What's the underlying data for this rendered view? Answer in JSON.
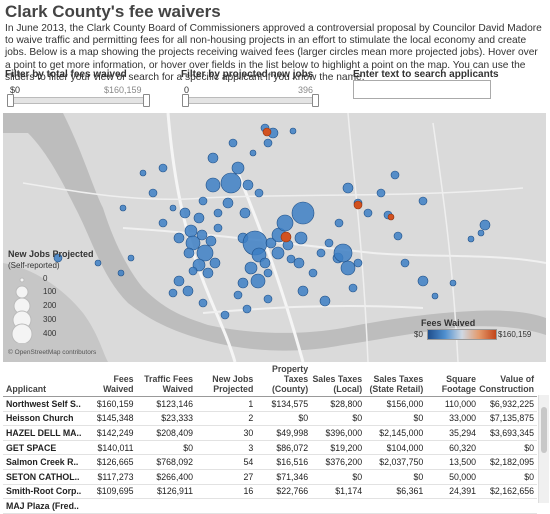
{
  "page": {
    "title": "Clark County's fee waivers",
    "description": "In June 2013, the Clark County Board of Commissioners approved a controversial proposal by Councilor David Madore to waive traffic and permitting fees for all non-housing projects in an effort to stimulate the local economy and create jobs. Below is a map showing the projects receiving waived fees (larger circles mean more projected jobs). Hover over a point to get more information, or hover over fields in the list below to highlight a point on the map. You can use the sliders to filter your view or search for a specific applicant if you know the name."
  },
  "filters": {
    "fees": {
      "label": "Filter by total fees waived",
      "min": "$0",
      "max": "$160,159"
    },
    "jobs": {
      "label": "Filter by projected new jobs",
      "min": "0",
      "max": "396"
    },
    "search": {
      "label": "Enter text to search applicants",
      "value": ""
    }
  },
  "map": {
    "attribution": "© OpenStreetMap contributors",
    "size_legend": {
      "title": "New Jobs Projected",
      "subtitle": "(Self-reported)",
      "values": [
        "0",
        "100",
        "200",
        "300",
        "400"
      ]
    },
    "color_legend": {
      "title": "Fees Waived",
      "min": "$0",
      "max": "$160,159",
      "low_color": "#2b6cb0",
      "high_color": "#d2511f"
    },
    "colors": {
      "water": "#bfbfbf",
      "land": "#dadada",
      "road": "#f4f4f4",
      "point": "#3d7fc4"
    }
  },
  "table": {
    "headers": [
      "Applicant",
      "Fees Waived",
      "Traffic Fees Waived",
      "New Jobs Projected",
      "Property Taxes (County)",
      "Sales Taxes (Local)",
      "Sales Taxes (State Retail)",
      "Square Footage",
      "Value of Construction"
    ],
    "rows": [
      [
        "Northwest Self S..",
        "$160,159",
        "$123,146",
        "1",
        "$134,575",
        "$28,800",
        "$156,000",
        "110,000",
        "$6,932,225"
      ],
      [
        "Heisson Church",
        "$145,348",
        "$23,333",
        "2",
        "$0",
        "$0",
        "$0",
        "33,000",
        "$7,135,875"
      ],
      [
        "HAZEL DELL MA..",
        "$142,249",
        "$208,409",
        "30",
        "$49,998",
        "$396,000",
        "$2,145,000",
        "35,294",
        "$3,693,345"
      ],
      [
        "GET SPACE",
        "$140,011",
        "$0",
        "3",
        "$86,072",
        "$19,200",
        "$104,000",
        "60,320",
        "$0"
      ],
      [
        "Salmon Creek R..",
        "$126,665",
        "$768,092",
        "54",
        "$16,516",
        "$376,200",
        "$2,037,750",
        "13,500",
        "$2,182,095"
      ],
      [
        "SETON CATHOL..",
        "$117,273",
        "$266,400",
        "27",
        "$71,346",
        "$0",
        "$0",
        "50,000",
        "$0"
      ],
      [
        "Smith-Root Corp..",
        "$109,695",
        "$126,911",
        "16",
        "$22,766",
        "$1,174",
        "$6,361",
        "24,391",
        "$2,162,656"
      ],
      [
        "MAJ Plaza (Fred..",
        "",
        "",
        "",
        "",
        "",
        "",
        "",
        ""
      ]
    ]
  }
}
